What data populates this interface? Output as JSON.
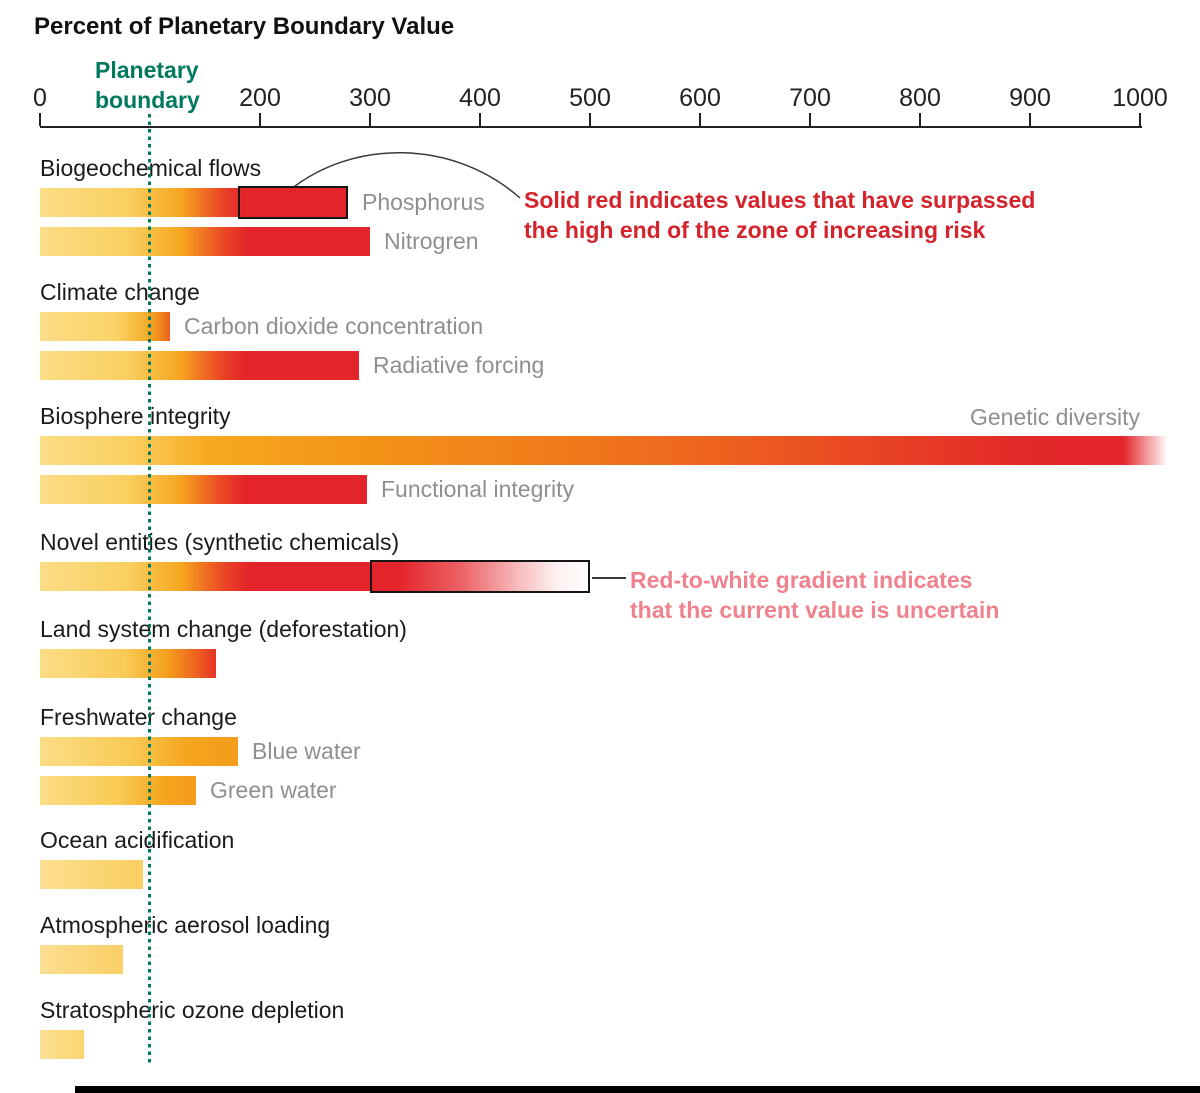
{
  "title": {
    "text": "Percent of Planetary Boundary Value"
  },
  "axis": {
    "tick_values": [
      0,
      100,
      200,
      300,
      400,
      500,
      600,
      700,
      800,
      900,
      1000
    ],
    "tick_labels": [
      "0",
      "",
      "200",
      "300",
      "400",
      "500",
      "600",
      "700",
      "800",
      "900",
      "1000"
    ],
    "max": 1000,
    "boundary": {
      "label_line1": "Planetary",
      "label_line2": "boundary",
      "value": 100,
      "color": "#00795E"
    }
  },
  "annotations": {
    "surpassed": {
      "line1": "Solid red indicates values that have surpassed",
      "line2": "the high end of the zone of increasing risk",
      "color": "#D4232B"
    },
    "uncertain": {
      "line1": "Red-to-white gradient indicates",
      "line2": "that the current value is uncertain",
      "color": "#EF828C"
    }
  },
  "chart_data": {
    "type": "bar",
    "orientation": "horizontal",
    "title": "Percent of Planetary Boundary Value",
    "xlabel": "Percent of planetary boundary value",
    "xlim": [
      0,
      1000
    ],
    "boundary_value": 100,
    "legend_notes": [
      "Solid red indicates values that have surpassed the high end of the zone of increasing risk",
      "Red-to-white gradient indicates that the current value is uncertain"
    ],
    "groups": [
      {
        "label": "Biogeochemical flows",
        "bars": [
          {
            "label": "Phosphorus",
            "value": 280,
            "surpassed_range": [
              180,
              280
            ],
            "stops": "#FCDD86 0%, #F9CF5F 29%, #F6A51F 46%, #EB4B25 58%, #E3242A 66%, #E3242A 100%"
          },
          {
            "label": "Nitrogren",
            "value": 300,
            "stops": "#FCDD86 0%, #F9CF5F 27%, #F6A51F 43%, #EB4B25 55%, #E3242A 63%, #E3242A 100%"
          }
        ]
      },
      {
        "label": "Climate change",
        "bars": [
          {
            "label": "Carbon dioxide concentration",
            "value": 118,
            "stops": "#FCDD86 0%, #FAD469 58%, #F6AE2A 82%, #F0871B 93%, #E95E20 100%"
          },
          {
            "label": "Radiative forcing",
            "value": 290,
            "stops": "#FCDD86 0%, #F9CF5F 28%, #F6A51F 44%, #EB4B25 56%, #E3242A 64%, #E3242A 100%"
          }
        ]
      },
      {
        "label": "Biosphere integrity",
        "bars": [
          {
            "label": "Genetic diversity",
            "value": 1025,
            "exceeds_axis": true,
            "label_position": "above-right",
            "stops": "#FCDD86 0%, #F9CF5F 8%, #F7A91F 15%, #F49418 28%, #F17E1B 44%, #ED621F 60%, #E84225 75%, #E32B28 86%, #E3242A 93%, #E3242A 96%, rgba(227,36,42,0) 100%"
          },
          {
            "label": "Functional integrity",
            "value": 297,
            "stops": "#FCDD86 0%, #F9CF5F 27%, #F6A51F 43%, #EB4B25 55%, #E3242A 63%, #E3242A 100%"
          }
        ]
      },
      {
        "label": "Novel entities (synthetic chemicals)",
        "bars": [
          {
            "label": "",
            "value": 300,
            "uncertain_range": [
              300,
              500
            ],
            "stops": "#FCDD86 0%, #F9CF5F 27%, #F6A51F 43%, #EB4B25 55%, #E3242A 63%, #E3242A 100%",
            "uncertain_stops": "#E3242A 0%, #E3242A 12%, #EC6468 42%, #F7BCBE 68%, #FDEFEF 85%, #FFFFFF 100%"
          }
        ]
      },
      {
        "label": "Land system change (deforestation)",
        "bars": [
          {
            "label": "",
            "value": 160,
            "stops": "#FCDD86 0%, #F9CB58 48%, #F4A01D 72%, #EE6220 89%, #E6332A 100%"
          }
        ]
      },
      {
        "label": "Freshwater change",
        "bars": [
          {
            "label": "Blue water",
            "value": 180,
            "stops": "#FCDD86 0%, #F9CA54 46%, #F5A51E 74%, #F49C1B 100%"
          },
          {
            "label": "Green water",
            "value": 142,
            "stops": "#FCDD86 0%, #F9CA54 50%, #F5A51E 80%, #F49C1B 100%"
          }
        ]
      },
      {
        "label": "Ocean acidification",
        "bars": [
          {
            "label": "",
            "value": 94,
            "stops": "#FCDF92 0%, #FAD36B 70%, #F9CE61 100%"
          }
        ]
      },
      {
        "label": "Atmospheric aerosol loading",
        "bars": [
          {
            "label": "",
            "value": 75,
            "stops": "#FCDF92 0%, #FACF66 100%"
          }
        ]
      },
      {
        "label": "Stratospheric ozone depletion",
        "bars": [
          {
            "label": "",
            "value": 40,
            "stops": "#FCDF92 0%, #FBD571 100%"
          }
        ]
      }
    ]
  }
}
